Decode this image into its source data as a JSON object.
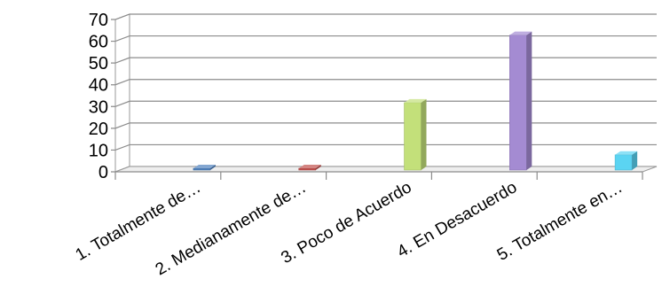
{
  "chart_data": {
    "type": "bar",
    "title": "",
    "xlabel": "",
    "ylabel": "",
    "ylim": [
      0,
      70
    ],
    "yticks": [
      0,
      10,
      20,
      30,
      40,
      50,
      60,
      70
    ],
    "grid": true,
    "legend": "none",
    "style": "3d-column",
    "categories": [
      "1. Totalmente de…",
      "2. Medianamente de…",
      "3. Poco de Acuerdo",
      "4. En Desacuerdo",
      "5. Totalmente en…"
    ],
    "values": [
      0,
      0,
      31,
      62,
      7
    ],
    "colors": [
      "#4f81bd",
      "#c0504d",
      "#c3e07a",
      "#a48bd2",
      "#5bd4f2"
    ]
  }
}
